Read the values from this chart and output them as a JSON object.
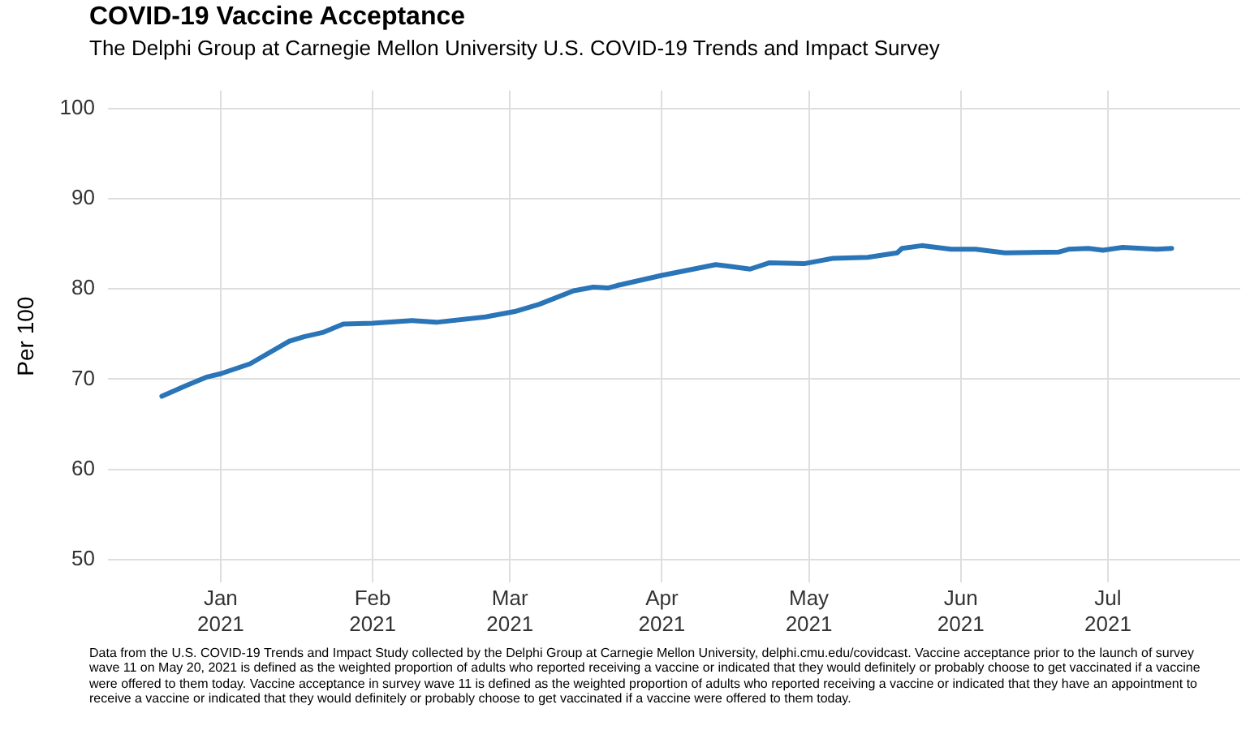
{
  "chart_data": {
    "type": "line",
    "title": "COVID-19 Vaccine Acceptance",
    "subtitle": "The Delphi Group at Carnegie Mellon University U.S. COVID-19 Trends and Impact Survey",
    "ylabel": "Per 100",
    "annotations": [
      "Data from the U.S. COVID-19 Trends and Impact Study collected by the Delphi Group at Carnegie Mellon University, delphi.cmu.edu/covidcast. Vaccine acceptance prior to the launch of survey wave 11 on May 20, 2021 is defined as the weighted proportion of adults who reported receiving a vaccine or indicated that they would definitely or probably choose to get vaccinated if a vaccine were offered to them today. Vaccine acceptance in survey wave 11 is defined as the weighted proportion of adults who reported receiving a vaccine or indicated that they have an appointment to receive a vaccine or indicated that they would definitely or probably choose to get vaccinated if a vaccine were offered to them today."
    ],
    "x": [
      "2020-12-20",
      "2020-12-25",
      "2020-12-29",
      "2021-01-01",
      "2021-01-07",
      "2021-01-15",
      "2021-01-18",
      "2021-01-22",
      "2021-01-26",
      "2021-02-01",
      "2021-02-09",
      "2021-02-14",
      "2021-02-24",
      "2021-03-02",
      "2021-03-07",
      "2021-03-14",
      "2021-03-18",
      "2021-03-21",
      "2021-03-23",
      "2021-04-01",
      "2021-04-12",
      "2021-04-15",
      "2021-04-19",
      "2021-04-23",
      "2021-04-30",
      "2021-05-06",
      "2021-05-13",
      "2021-05-19",
      "2021-05-20",
      "2021-05-24",
      "2021-05-30",
      "2021-06-04",
      "2021-06-10",
      "2021-06-21",
      "2021-06-23",
      "2021-06-27",
      "2021-06-30",
      "2021-07-04",
      "2021-07-11",
      "2021-07-14"
    ],
    "series": [
      {
        "color": "#2a74b8",
        "values": [
          68.1,
          69.3,
          70.2,
          70.6,
          71.7,
          74.2,
          74.7,
          75.2,
          76.1,
          76.2,
          76.5,
          76.3,
          76.9,
          77.5,
          78.3,
          79.8,
          80.2,
          80.1,
          80.4,
          81.5,
          82.7,
          82.5,
          82.2,
          82.9,
          82.8,
          83.4,
          83.5,
          84.0,
          84.5,
          84.8,
          84.4,
          84.4,
          84.0,
          84.1,
          84.4,
          84.5,
          84.3,
          84.6,
          84.4,
          84.5
        ]
      }
    ],
    "xlim": [
      "2020-12-09",
      "2021-07-28"
    ],
    "xticks": [
      {
        "value": "2021-01-01",
        "label": "Jan\n2021"
      },
      {
        "value": "2021-02-01",
        "label": "Feb\n2021"
      },
      {
        "value": "2021-03-01",
        "label": "Mar\n2021"
      },
      {
        "value": "2021-04-01",
        "label": "Apr\n2021"
      },
      {
        "value": "2021-05-01",
        "label": "May\n2021"
      },
      {
        "value": "2021-06-01",
        "label": "Jun\n2021"
      },
      {
        "value": "2021-07-01",
        "label": "Jul\n2021"
      }
    ],
    "ylim": [
      47.5,
      102
    ],
    "yticks": [
      50,
      60,
      70,
      80,
      90,
      100
    ],
    "grid": true,
    "legend": false,
    "marker": "none",
    "line_style": "solid"
  }
}
